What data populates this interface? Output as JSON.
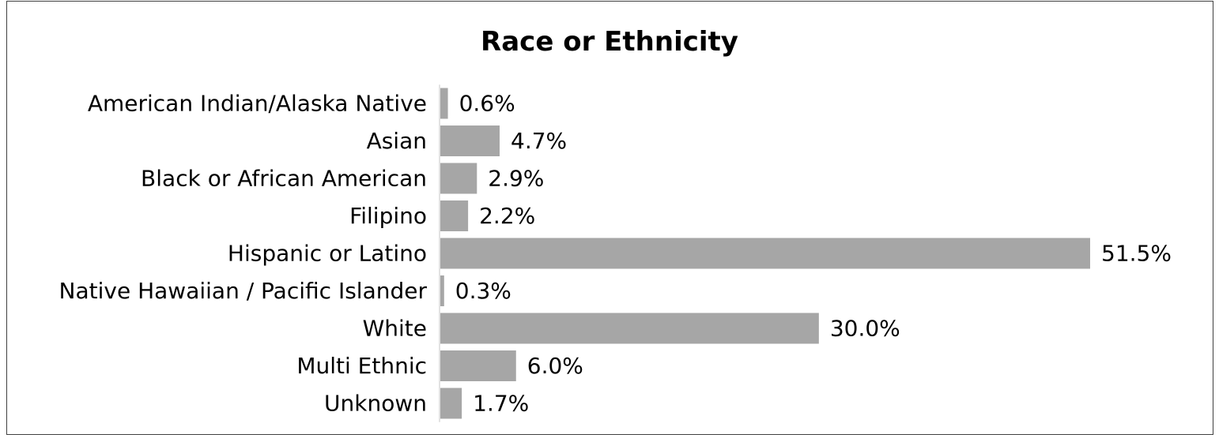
{
  "chart_data": {
    "type": "bar",
    "orientation": "horizontal",
    "title": "Race or Ethnicity",
    "categories": [
      "American Indian/Alaska Native",
      "Asian",
      "Black or African American",
      "Filipino",
      "Hispanic or Latino",
      "Native Hawaiian / Pacific Islander",
      "White",
      "Multi Ethnic",
      "Unknown"
    ],
    "values": [
      0.6,
      4.7,
      2.9,
      2.2,
      51.5,
      0.3,
      30.0,
      6.0,
      1.7
    ],
    "value_labels": [
      "0.6%",
      "4.7%",
      "2.9%",
      "2.2%",
      "51.5%",
      "0.3%",
      "30.0%",
      "6.0%",
      "1.7%"
    ],
    "xlim": [
      0,
      51.5
    ],
    "grid": false,
    "legend": "none",
    "bar_color": "#a6a6a6",
    "axis_color": "#d9d9d9"
  }
}
